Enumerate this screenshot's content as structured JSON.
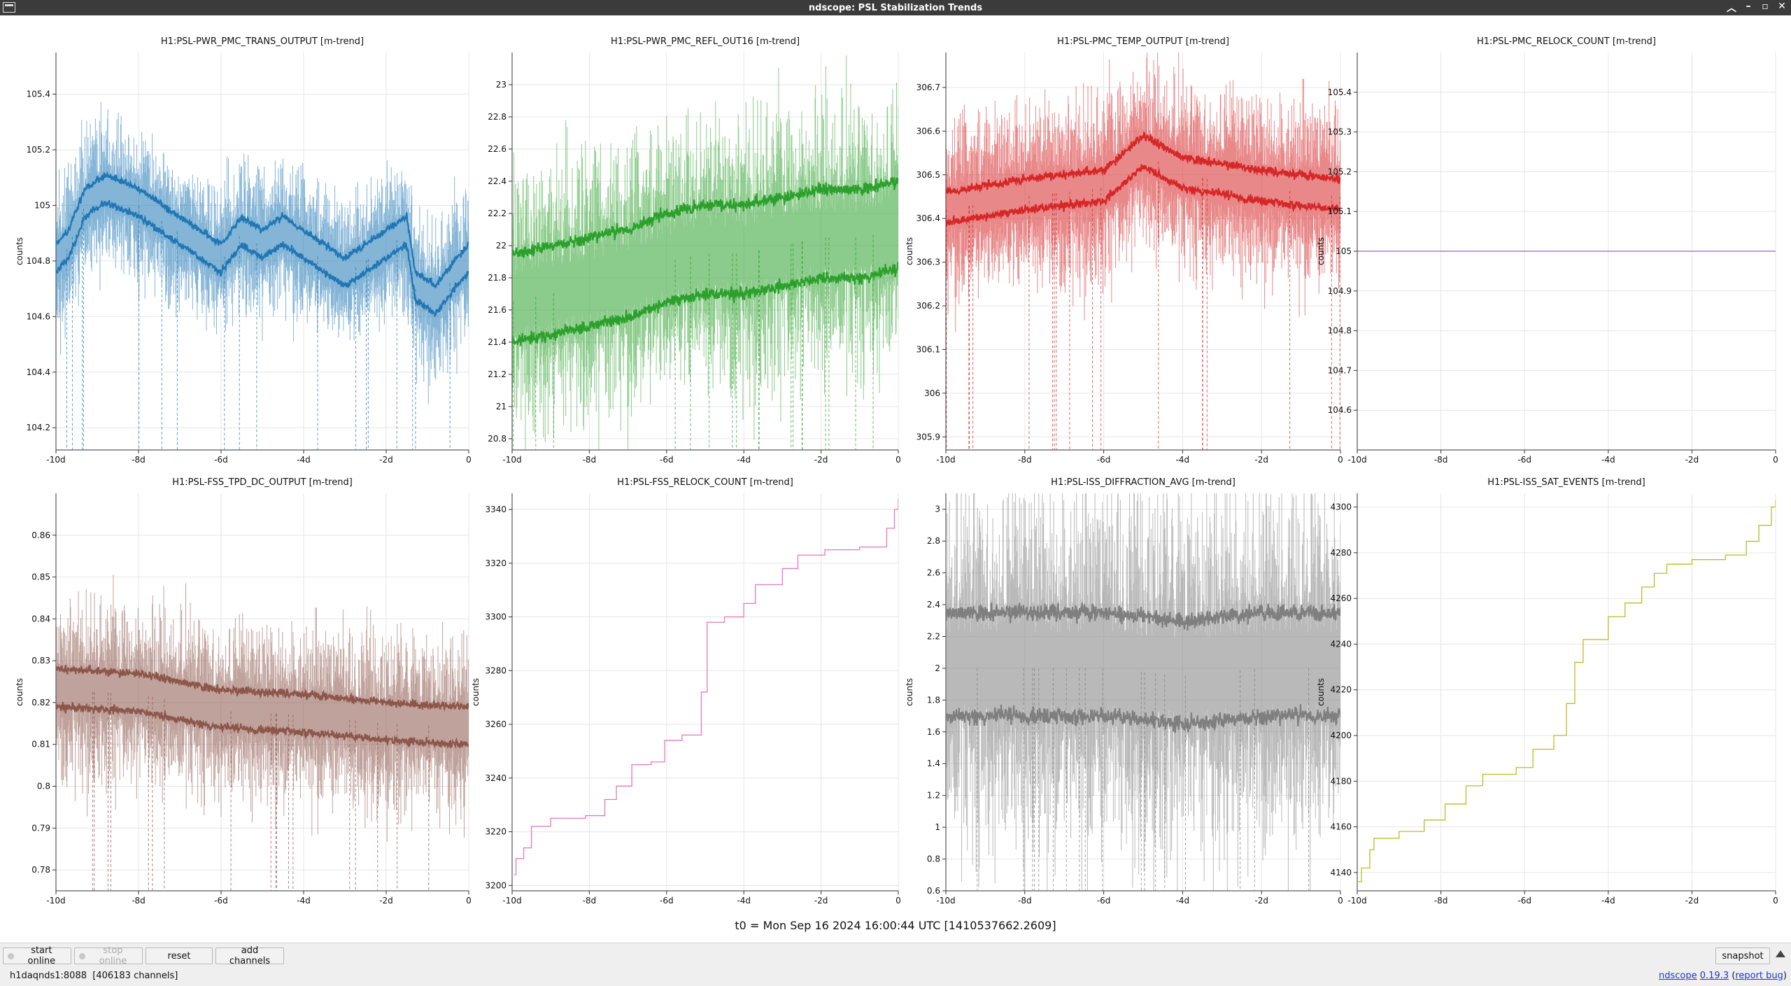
{
  "window": {
    "title": "ndscope: PSL Stabilization Trends"
  },
  "colors": {
    "blue": "#1f77b4",
    "green": "#2ca02c",
    "red": "#d62728",
    "purple": "#9467bd",
    "brown": "#8c564b",
    "pink": "#e377c2",
    "gray": "#7f7f7f",
    "olive": "#bcbd22"
  },
  "plots": [
    {
      "title": "H1:PSL-PWR_PMC_TRANS_OUTPUT [m-trend]",
      "ylabel": "counts",
      "yticks": [
        "105.4",
        "105.2",
        "105",
        "104.8",
        "104.6",
        "104.4",
        "104.2"
      ],
      "xticks": [
        "-10d",
        "-8d",
        "-6d",
        "-4d",
        "-2d",
        "0"
      ],
      "color": "blue",
      "chart_data": {
        "type": "line",
        "ylim": [
          104.12,
          105.55
        ],
        "xlim": [
          -10,
          0
        ],
        "x_unit": "days",
        "trend": [
          [
            -10,
            104.8
          ],
          [
            -9.7,
            104.85
          ],
          [
            -9.3,
            105.0
          ],
          [
            -8.8,
            105.05
          ],
          [
            -8,
            105.0
          ],
          [
            -7.5,
            104.95
          ],
          [
            -7,
            104.9
          ],
          [
            -6.5,
            104.85
          ],
          [
            -6,
            104.8
          ],
          [
            -5.5,
            104.9
          ],
          [
            -5,
            104.85
          ],
          [
            -4.5,
            104.9
          ],
          [
            -4,
            104.85
          ],
          [
            -3.5,
            104.8
          ],
          [
            -3,
            104.75
          ],
          [
            -2.5,
            104.8
          ],
          [
            -2,
            104.85
          ],
          [
            -1.5,
            104.9
          ],
          [
            -1.3,
            104.7
          ],
          [
            -0.8,
            104.65
          ],
          [
            -0.3,
            104.75
          ],
          [
            0,
            104.8
          ]
        ]
      }
    },
    {
      "title": "H1:PSL-PWR_PMC_REFL_OUT16 [m-trend]",
      "ylabel": "",
      "yticks": [
        "23",
        "22.8",
        "22.6",
        "22.4",
        "22.2",
        "22",
        "21.8",
        "21.6",
        "21.4",
        "21.2",
        "21",
        "20.8"
      ],
      "xticks": [
        "-10d",
        "-8d",
        "-6d",
        "-4d",
        "-2d",
        "0"
      ],
      "color": "green",
      "chart_data": {
        "type": "line",
        "ylim": [
          20.73,
          23.2
        ],
        "xlim": [
          -10,
          0
        ],
        "x_unit": "days",
        "trend": [
          [
            -10,
            21.65
          ],
          [
            -9,
            21.7
          ],
          [
            -8,
            21.75
          ],
          [
            -7,
            21.8
          ],
          [
            -6,
            21.9
          ],
          [
            -5,
            21.95
          ],
          [
            -4,
            21.95
          ],
          [
            -3,
            22.0
          ],
          [
            -2,
            22.05
          ],
          [
            -1,
            22.05
          ],
          [
            0,
            22.1
          ]
        ]
      }
    },
    {
      "title": "H1:PSL-PMC_TEMP_OUTPUT [m-trend]",
      "ylabel": "counts",
      "yticks": [
        "306.7",
        "306.6",
        "306.5",
        "306.4",
        "306.3",
        "306.2",
        "306.1",
        "306",
        "305.9"
      ],
      "xticks": [
        "-10d",
        "-8d",
        "-6d",
        "-4d",
        "-2d",
        "0"
      ],
      "color": "red",
      "chart_data": {
        "type": "line",
        "ylim": [
          305.87,
          306.78
        ],
        "xlim": [
          -10,
          0
        ],
        "x_unit": "days",
        "trend": [
          [
            -10,
            306.42
          ],
          [
            -8,
            306.45
          ],
          [
            -6,
            306.47
          ],
          [
            -5,
            306.55
          ],
          [
            -4,
            306.5
          ],
          [
            -2,
            306.47
          ],
          [
            0,
            306.45
          ]
        ]
      }
    },
    {
      "title": "H1:PSL-PMC_RELOCK_COUNT [m-trend]",
      "ylabel": "counts",
      "yticks": [
        "105.4",
        "105.3",
        "105.2",
        "105.1",
        "105",
        "104.9",
        "104.8",
        "104.7",
        "104.6"
      ],
      "xticks": [
        "-10d",
        "-8d",
        "-6d",
        "-4d",
        "-2d",
        "0"
      ],
      "color": "purple",
      "chart_data": {
        "type": "line",
        "ylim": [
          104.5,
          105.5
        ],
        "xlim": [
          -10,
          0
        ],
        "x_unit": "days",
        "trend": [
          [
            -10,
            105
          ],
          [
            0,
            105
          ]
        ]
      }
    },
    {
      "title": "H1:PSL-FSS_TPD_DC_OUTPUT [m-trend]",
      "ylabel": "counts",
      "yticks": [
        "0.86",
        "0.85",
        "0.84",
        "0.83",
        "0.82",
        "0.81",
        "0.8",
        "0.79",
        "0.78"
      ],
      "xticks": [
        "-10d",
        "-8d",
        "-6d",
        "-4d",
        "-2d",
        "0"
      ],
      "color": "brown",
      "chart_data": {
        "type": "line",
        "ylim": [
          0.775,
          0.87
        ],
        "xlim": [
          -10,
          0
        ],
        "x_unit": "days",
        "trend": [
          [
            -10,
            0.823
          ],
          [
            -8,
            0.822
          ],
          [
            -6,
            0.818
          ],
          [
            -4,
            0.817
          ],
          [
            -2,
            0.815
          ],
          [
            0,
            0.814
          ]
        ]
      }
    },
    {
      "title": "H1:PSL-FSS_RELOCK_COUNT [m-trend]",
      "ylabel": "counts",
      "yticks": [
        "3340",
        "3320",
        "3300",
        "3280",
        "3260",
        "3240",
        "3220",
        "3200"
      ],
      "xticks": [
        "-10d",
        "-8d",
        "-6d",
        "-4d",
        "-2d",
        "0"
      ],
      "color": "pink",
      "chart_data": {
        "type": "line",
        "ylim": [
          3198,
          3346
        ],
        "xlim": [
          -10,
          0
        ],
        "x_unit": "days",
        "points": [
          [
            -9.95,
            3204
          ],
          [
            -9.9,
            3210
          ],
          [
            -9.7,
            3214
          ],
          [
            -9.5,
            3222
          ],
          [
            -9,
            3225
          ],
          [
            -8.1,
            3226
          ],
          [
            -7.6,
            3232
          ],
          [
            -7.3,
            3237
          ],
          [
            -6.9,
            3245
          ],
          [
            -6.4,
            3246
          ],
          [
            -6.05,
            3254
          ],
          [
            -5.6,
            3256
          ],
          [
            -5.1,
            3272
          ],
          [
            -4.95,
            3298
          ],
          [
            -4.5,
            3300
          ],
          [
            -4.0,
            3305
          ],
          [
            -3.7,
            3312
          ],
          [
            -3.0,
            3318
          ],
          [
            -2.6,
            3323
          ],
          [
            -1.9,
            3325
          ],
          [
            -1.0,
            3326
          ],
          [
            -0.3,
            3333
          ],
          [
            -0.1,
            3340
          ],
          [
            0,
            3344
          ]
        ]
      }
    },
    {
      "title": "H1:PSL-ISS_DIFFRACTION_AVG [m-trend]",
      "ylabel": "counts",
      "yticks": [
        "3",
        "2.8",
        "2.6",
        "2.4",
        "2.2",
        "2",
        "1.8",
        "1.6",
        "1.4",
        "1.2",
        "1",
        "0.8",
        "0.6"
      ],
      "xticks": [
        "-10d",
        "-8d",
        "-6d",
        "-4d",
        "-2d",
        "0"
      ],
      "color": "gray",
      "chart_data": {
        "type": "line",
        "ylim": [
          0.6,
          3.1
        ],
        "xlim": [
          -10,
          0
        ],
        "x_unit": "days",
        "trend": [
          [
            -10,
            2.0
          ],
          [
            -8,
            2.0
          ],
          [
            -6,
            2.0
          ],
          [
            -4,
            1.95
          ],
          [
            -2,
            2.0
          ],
          [
            0,
            2.0
          ]
        ]
      }
    },
    {
      "title": "H1:PSL-ISS_SAT_EVENTS [m-trend]",
      "ylabel": "counts",
      "yticks": [
        "4300",
        "4280",
        "4260",
        "4240",
        "4220",
        "4200",
        "4180",
        "4160",
        "4140"
      ],
      "xticks": [
        "-10d",
        "-8d",
        "-6d",
        "-4d",
        "-2d",
        "0"
      ],
      "color": "olive",
      "chart_data": {
        "type": "line",
        "ylim": [
          4132,
          4306
        ],
        "xlim": [
          -10,
          0
        ],
        "x_unit": "days",
        "points": [
          [
            -10,
            4136
          ],
          [
            -9.9,
            4142
          ],
          [
            -9.7,
            4150
          ],
          [
            -9.6,
            4155
          ],
          [
            -9.0,
            4158
          ],
          [
            -8.4,
            4163
          ],
          [
            -7.9,
            4170
          ],
          [
            -7.4,
            4178
          ],
          [
            -7.0,
            4183
          ],
          [
            -6.2,
            4186
          ],
          [
            -5.8,
            4194
          ],
          [
            -5.3,
            4200
          ],
          [
            -5.0,
            4214
          ],
          [
            -4.8,
            4232
          ],
          [
            -4.6,
            4242
          ],
          [
            -4.0,
            4252
          ],
          [
            -3.6,
            4258
          ],
          [
            -3.2,
            4265
          ],
          [
            -2.9,
            4271
          ],
          [
            -2.6,
            4275
          ],
          [
            -2.0,
            4277
          ],
          [
            -1.2,
            4279
          ],
          [
            -0.7,
            4285
          ],
          [
            -0.4,
            4292
          ],
          [
            -0.1,
            4300
          ],
          [
            0,
            4303
          ]
        ]
      }
    }
  ],
  "t0_label": "t0 = Mon Sep 16 2024 16:00:44 UTC [1410537662.2609]",
  "buttons": {
    "start_online": "start online",
    "stop_online": "stop online",
    "reset": "reset",
    "add_channels": "add channels",
    "snapshot": "snapshot"
  },
  "status": {
    "server": "h1daqnds1:8088",
    "channels": "[406183 channels]",
    "app": "ndscope",
    "version": "0.19.3",
    "report_bug": "report bug"
  }
}
